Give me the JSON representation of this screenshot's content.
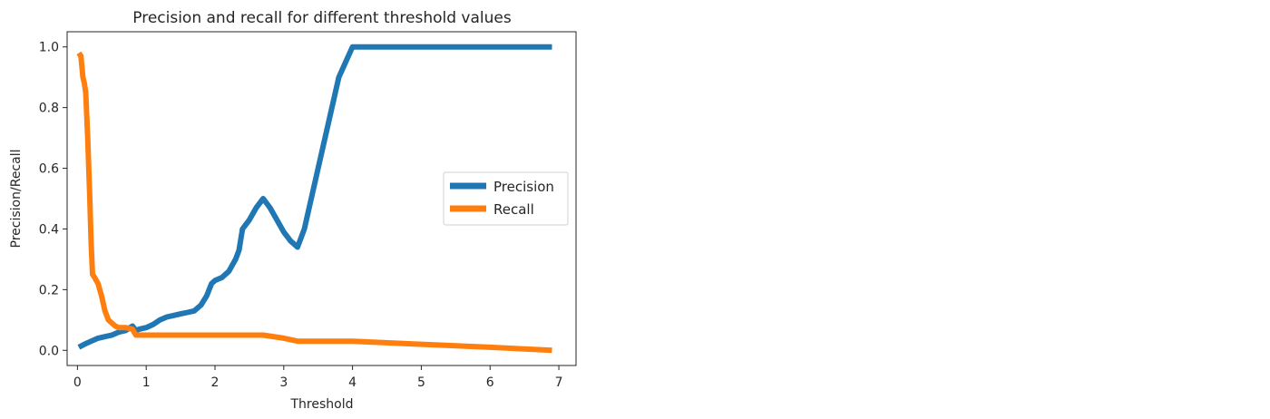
{
  "chart_data": {
    "type": "line",
    "title": "Precision and recall for different threshold values",
    "xlabel": "Threshold",
    "ylabel": "Precision/Recall",
    "xlim": [
      -0.15,
      7.25
    ],
    "ylim": [
      -0.05,
      1.05
    ],
    "xticks": [
      0,
      1,
      2,
      3,
      4,
      5,
      6,
      7
    ],
    "yticks": [
      0.0,
      0.2,
      0.4,
      0.6,
      0.8,
      1.0
    ],
    "xtick_labels": [
      "0",
      "1",
      "2",
      "3",
      "4",
      "5",
      "6",
      "7"
    ],
    "ytick_labels": [
      "0.0",
      "0.2",
      "0.4",
      "0.6",
      "0.8",
      "1.0"
    ],
    "grid": false,
    "legend_position": "center-right",
    "series": [
      {
        "name": "Precision",
        "color": "#1f77b4",
        "x": [
          0.02,
          0.1,
          0.2,
          0.3,
          0.4,
          0.5,
          0.6,
          0.7,
          0.8,
          0.85,
          0.9,
          1.0,
          1.1,
          1.2,
          1.3,
          1.4,
          1.5,
          1.6,
          1.7,
          1.8,
          1.88,
          1.95,
          2.0,
          2.1,
          2.2,
          2.3,
          2.35,
          2.4,
          2.5,
          2.6,
          2.7,
          2.8,
          2.9,
          3.0,
          3.1,
          3.2,
          3.3,
          3.4,
          3.5,
          3.6,
          3.7,
          3.8,
          3.9,
          4.0,
          4.5,
          5.0,
          5.5,
          6.0,
          6.5,
          6.9
        ],
        "y": [
          0.01,
          0.02,
          0.03,
          0.04,
          0.045,
          0.05,
          0.06,
          0.065,
          0.08,
          0.065,
          0.07,
          0.075,
          0.085,
          0.1,
          0.11,
          0.115,
          0.12,
          0.125,
          0.13,
          0.15,
          0.18,
          0.22,
          0.23,
          0.24,
          0.26,
          0.3,
          0.33,
          0.4,
          0.43,
          0.47,
          0.5,
          0.47,
          0.43,
          0.39,
          0.36,
          0.34,
          0.4,
          0.5,
          0.6,
          0.7,
          0.8,
          0.9,
          0.95,
          1.0,
          1.0,
          1.0,
          1.0,
          1.0,
          1.0,
          1.0
        ]
      },
      {
        "name": "Recall",
        "color": "#ff7f0e",
        "x": [
          0.02,
          0.05,
          0.08,
          0.1,
          0.12,
          0.15,
          0.18,
          0.2,
          0.22,
          0.25,
          0.3,
          0.35,
          0.4,
          0.45,
          0.5,
          0.55,
          0.6,
          0.7,
          0.8,
          0.85,
          1.0,
          2.0,
          2.7,
          3.0,
          3.2,
          4.0,
          5.0,
          6.0,
          6.9
        ],
        "y": [
          0.98,
          0.97,
          0.9,
          0.88,
          0.85,
          0.7,
          0.5,
          0.35,
          0.25,
          0.24,
          0.22,
          0.18,
          0.13,
          0.1,
          0.09,
          0.08,
          0.075,
          0.075,
          0.07,
          0.05,
          0.05,
          0.05,
          0.05,
          0.04,
          0.03,
          0.03,
          0.02,
          0.01,
          0.0
        ]
      }
    ]
  }
}
